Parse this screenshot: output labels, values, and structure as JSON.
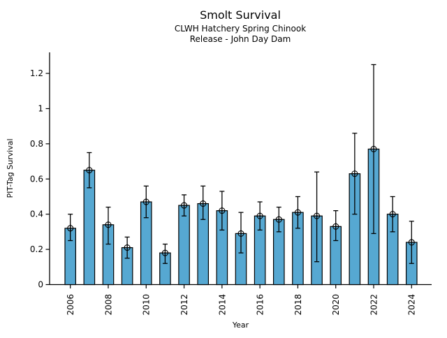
{
  "chart_data": {
    "type": "bar",
    "title": "Smolt Survival",
    "subtitle_lines": [
      "CLWH Hatchery Spring Chinook",
      "Release - John Day Dam"
    ],
    "xlabel": "Year",
    "ylabel": "PIT-Tag Survival",
    "categories": [
      2006,
      2007,
      2008,
      2009,
      2010,
      2011,
      2012,
      2013,
      2014,
      2015,
      2016,
      2017,
      2018,
      2019,
      2020,
      2021,
      2022,
      2023,
      2024
    ],
    "values": [
      0.32,
      0.65,
      0.34,
      0.21,
      0.47,
      0.18,
      0.45,
      0.46,
      0.42,
      0.29,
      0.39,
      0.37,
      0.41,
      0.39,
      0.33,
      0.63,
      0.77,
      0.4,
      0.24
    ],
    "error_low": [
      0.25,
      0.55,
      0.23,
      0.15,
      0.38,
      0.12,
      0.39,
      0.37,
      0.31,
      0.18,
      0.31,
      0.3,
      0.32,
      0.13,
      0.25,
      0.4,
      0.29,
      0.3,
      0.12
    ],
    "error_high": [
      0.4,
      0.75,
      0.44,
      0.27,
      0.56,
      0.23,
      0.51,
      0.56,
      0.53,
      0.41,
      0.47,
      0.44,
      0.5,
      0.64,
      0.42,
      0.86,
      1.25,
      0.5,
      0.36
    ],
    "x_ticks": [
      {
        "value": 2006,
        "label": "2006"
      },
      {
        "value": 2008,
        "label": "2008"
      },
      {
        "value": 2010,
        "label": "2010"
      },
      {
        "value": 2012,
        "label": "2012"
      },
      {
        "value": 2014,
        "label": "2014"
      },
      {
        "value": 2016,
        "label": "2016"
      },
      {
        "value": 2018,
        "label": "2018"
      },
      {
        "value": 2020,
        "label": "2020"
      },
      {
        "value": 2022,
        "label": "2022"
      },
      {
        "value": 2024,
        "label": "2024"
      }
    ],
    "y_ticks": [
      {
        "value": 0,
        "label": "0"
      },
      {
        "value": 0.2,
        "label": "0.2"
      },
      {
        "value": 0.4,
        "label": "0.4"
      },
      {
        "value": 0.6,
        "label": "0.6"
      },
      {
        "value": 0.8,
        "label": "0.8"
      },
      {
        "value": 1,
        "label": "1"
      },
      {
        "value": 1.2,
        "label": "1.2"
      }
    ],
    "ylim": [
      0,
      1.32
    ],
    "grid": false,
    "legend": "none",
    "marker": "circle-plus",
    "colors": {
      "bar_fill": "#56a8d2",
      "bar_edge": "#000000",
      "errorbar": "#000000",
      "axis": "#000000",
      "background": "#ffffff"
    }
  }
}
